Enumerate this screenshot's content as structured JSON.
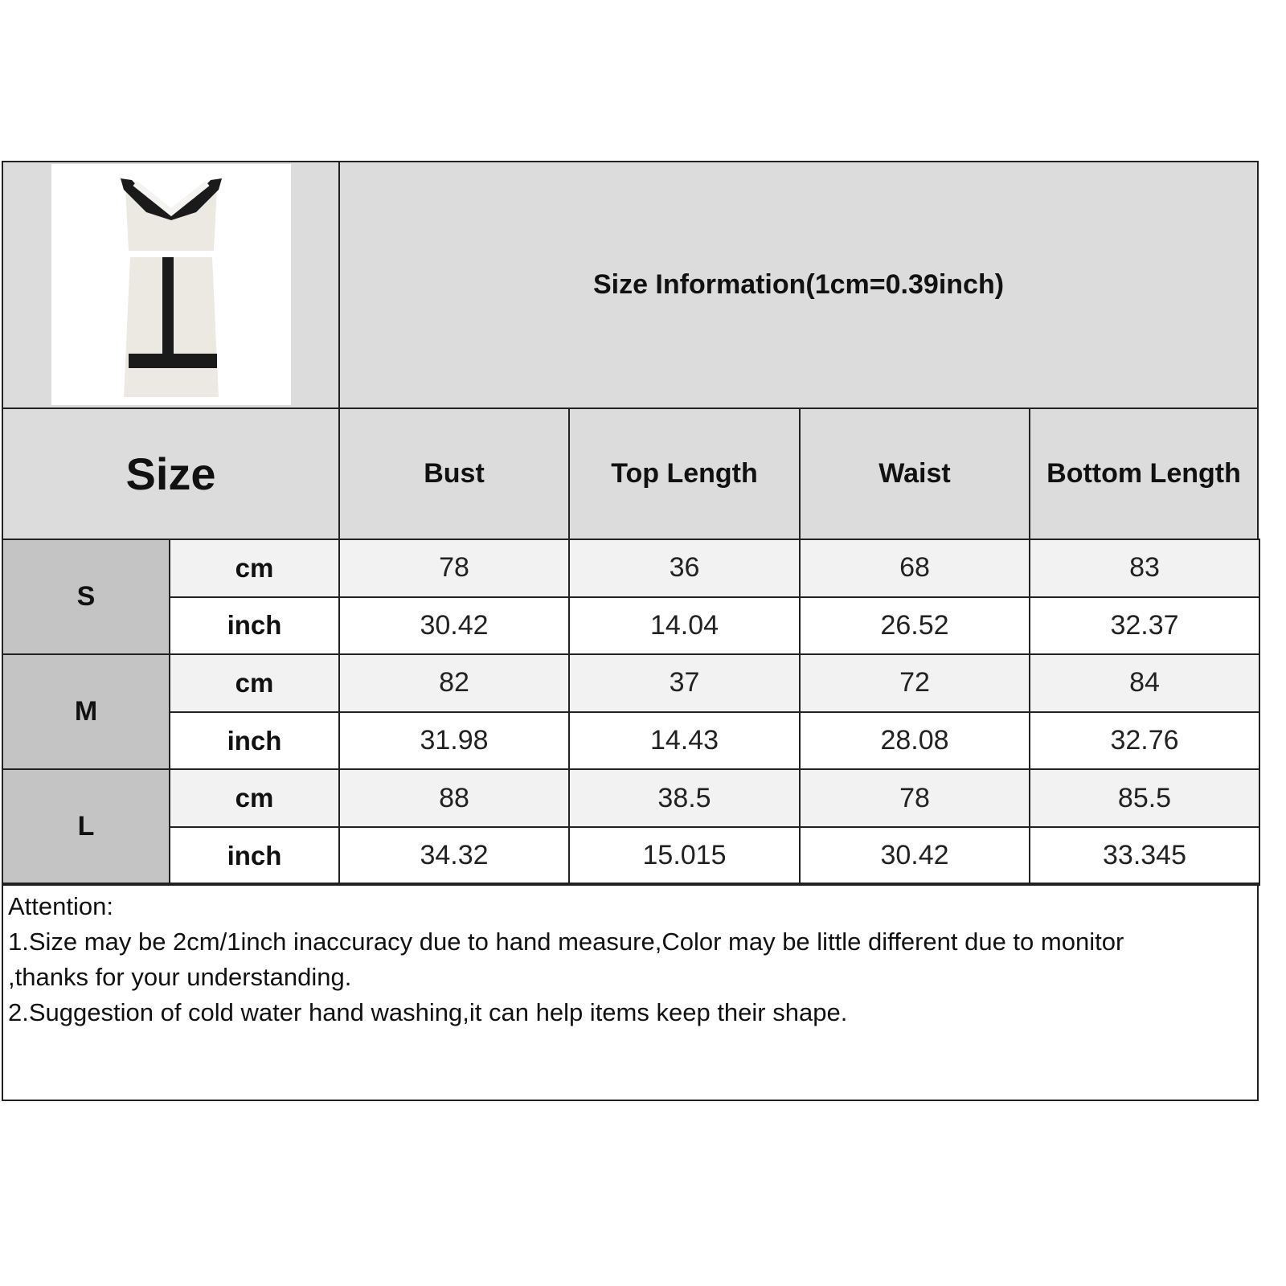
{
  "title": "Size Information(1cm=0.39inch)",
  "size_label": "Size",
  "columns": [
    "Bust",
    "Top Length",
    "Waist",
    "Bottom Length"
  ],
  "colors": {
    "header_bg": "#dcdcdc",
    "size_bg": "#c4c4c4",
    "cm_row_bg": "#f2f2f2",
    "inch_row_bg": "#ffffff"
  },
  "product_image": "two-piece-dress-set",
  "rows": [
    {
      "size": "S",
      "cm_label": "cm",
      "inch_label": "inch",
      "cm": [
        "78",
        "36",
        "68",
        "83"
      ],
      "inch": [
        "30.42",
        "14.04",
        "26.52",
        "32.37"
      ]
    },
    {
      "size": "M",
      "cm_label": "cm",
      "inch_label": "inch",
      "cm": [
        "82",
        "37",
        "72",
        "84"
      ],
      "inch": [
        "31.98",
        "14.43",
        "28.08",
        "32.76"
      ]
    },
    {
      "size": "L",
      "cm_label": "cm",
      "inch_label": "inch",
      "cm": [
        "88",
        "38.5",
        "78",
        "85.5"
      ],
      "inch": [
        "34.32",
        "15.015",
        "30.42",
        "33.345"
      ]
    }
  ],
  "notes": {
    "heading": "Attention:",
    "line1": "1.Size may be 2cm/1inch inaccuracy due to hand measure,Color may be little different due to monitor",
    "line2": ",thanks for your understanding.",
    "line3": "2.Suggestion of cold water hand washing,it can help items keep their shape."
  }
}
